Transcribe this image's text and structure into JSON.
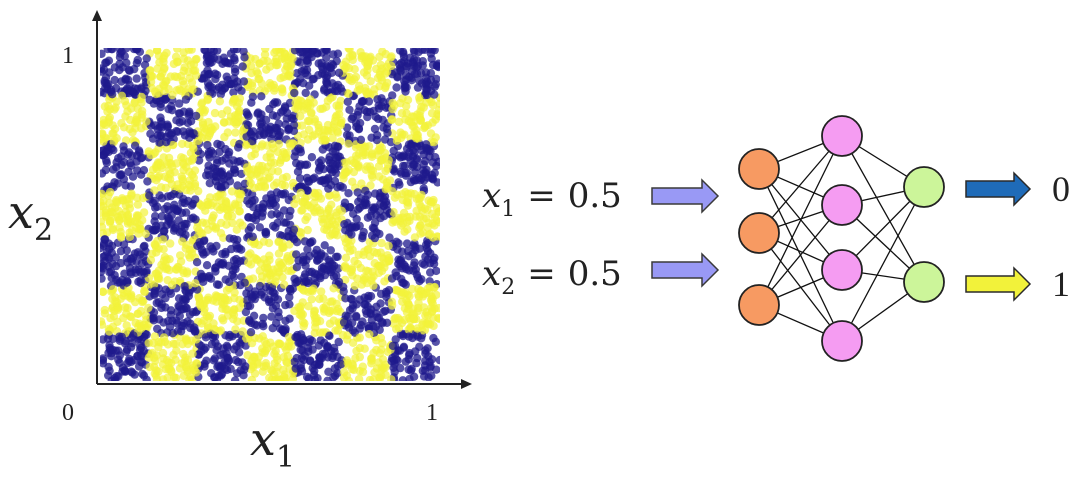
{
  "scatter": {
    "axis_x_var": "x",
    "axis_x_sub": "1",
    "axis_y_var": "x",
    "axis_y_sub": "2",
    "tick_origin": "0",
    "tick_x_max": "1",
    "tick_y_max": "1",
    "grid_cells": 7,
    "colors": {
      "class0": "#1f1a8c",
      "class1": "#f2f23a"
    }
  },
  "inputs": [
    {
      "var": "x",
      "sub": "1",
      "eq": "=",
      "value": "0.5"
    },
    {
      "var": "x",
      "sub": "2",
      "eq": "=",
      "value": "0.5"
    }
  ],
  "network": {
    "layers": [
      3,
      4,
      2
    ],
    "colors": {
      "input": "#f79a62",
      "hidden": "#f59cf2",
      "output": "#ccf59a"
    }
  },
  "outputs": [
    {
      "label": "0",
      "arrow_color": "#1f6bb8"
    },
    {
      "label": "1",
      "arrow_color": "#f2f23a"
    }
  ],
  "arrow_input_color": "#9999f5"
}
